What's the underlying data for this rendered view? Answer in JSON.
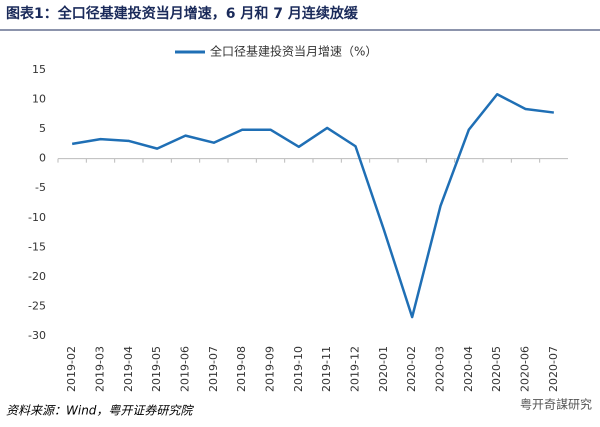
{
  "chart_data": {
    "type": "line",
    "title": "图表1：全口径基建投资当月增速，6 月和 7 月连续放缓",
    "categories": [
      "2019-02",
      "2019-03",
      "2019-04",
      "2019-05",
      "2019-06",
      "2019-07",
      "2019-08",
      "2019-09",
      "2019-10",
      "2019-11",
      "2019-12",
      "2020-01",
      "2020-02",
      "2020-03",
      "2020-04",
      "2020-05",
      "2020-06",
      "2020-07"
    ],
    "series": [
      {
        "name": "全口径基建投资当月增速（%）",
        "color": "#1f6fb5",
        "values": [
          2.5,
          3.3,
          3.0,
          1.7,
          3.9,
          2.7,
          4.9,
          4.9,
          2.0,
          5.2,
          2.1,
          -12,
          -26.8,
          -8,
          4.9,
          10.9,
          8.4,
          7.8
        ]
      }
    ],
    "ylim": [
      -30,
      15
    ],
    "yticks": [
      15,
      10,
      5,
      0,
      -5,
      -10,
      -15,
      -20,
      -25,
      -30
    ],
    "grid": false,
    "legend": "top",
    "source": "资料来源：Wind，粤开证券研究院",
    "watermark": "粤开奇謀研究"
  }
}
